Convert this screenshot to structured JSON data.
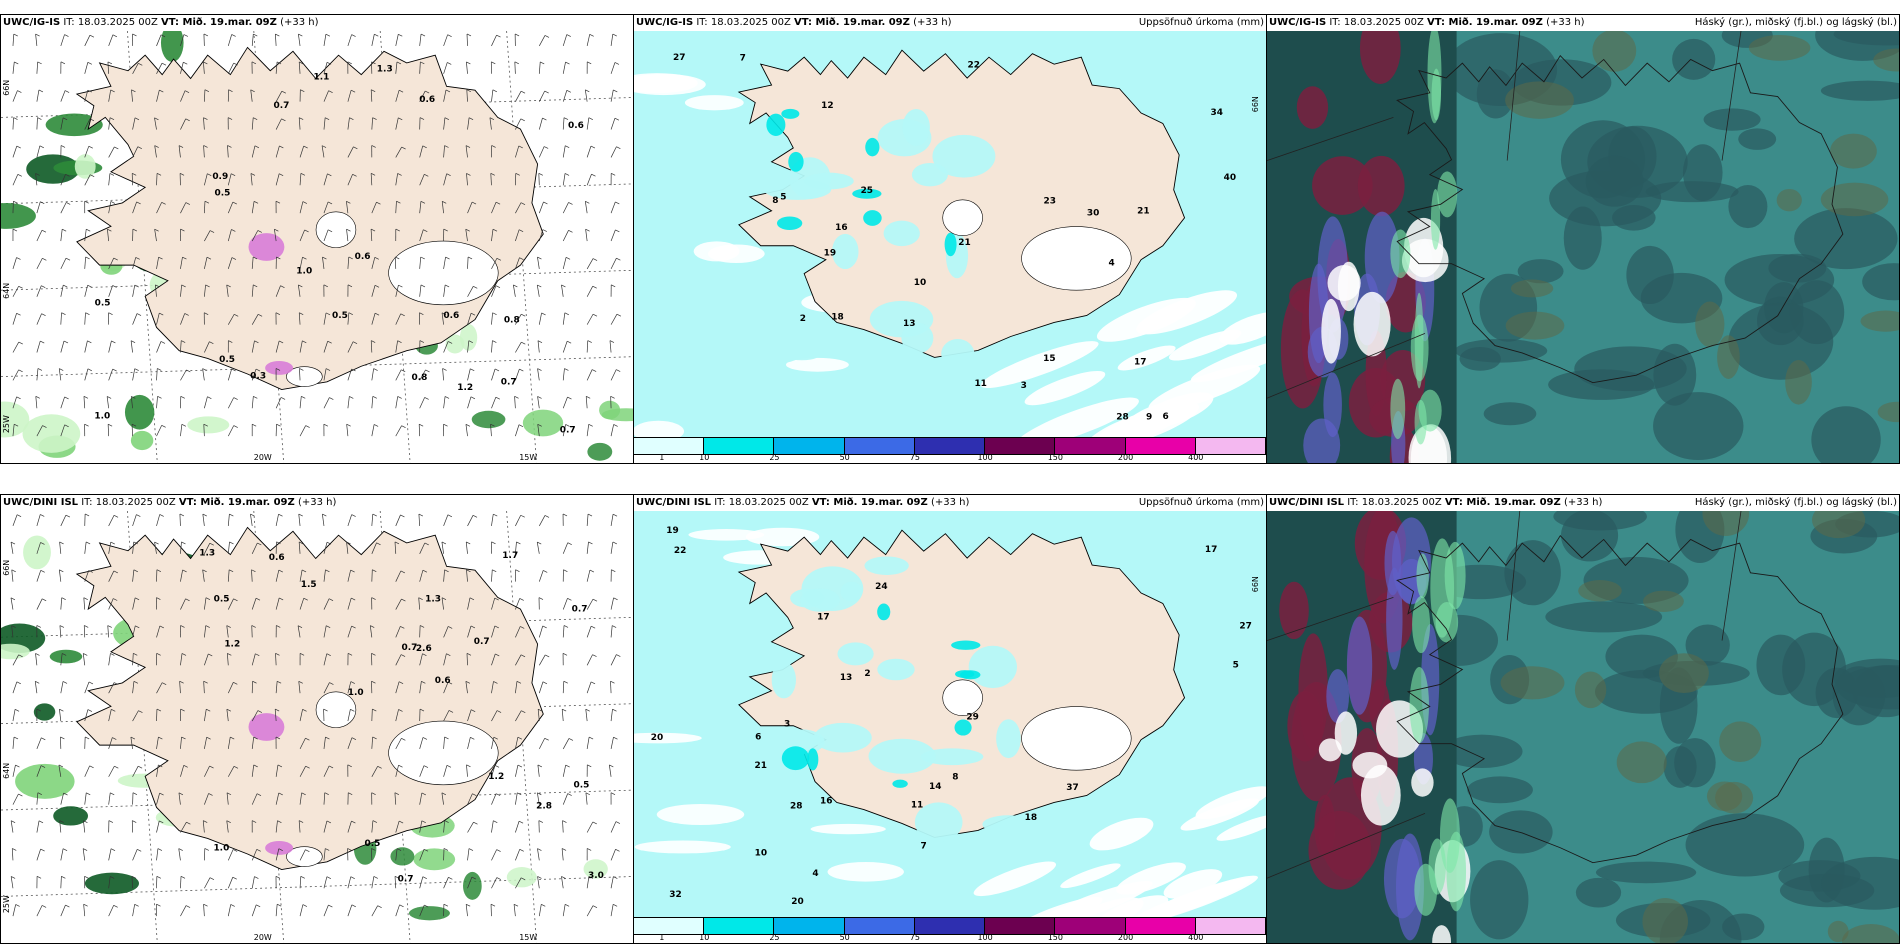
{
  "panels": [
    {
      "id": "p1",
      "title_model": "UWC/IG-IS",
      "title_rest": " IT: 18.03.2025 00Z ",
      "title_vt": "VT: Mið. 19.mar. 09Z",
      "title_lead": " (+33 h)",
      "right": ""
    },
    {
      "id": "p2",
      "title_model": "UWC/IG-IS",
      "title_rest": " IT: 18.03.2025 00Z ",
      "title_vt": "VT: Mið. 19.mar. 09Z",
      "title_lead": " (+33 h)",
      "right": "Uppsöfnuð úrkoma (mm)"
    },
    {
      "id": "p3",
      "title_model": "UWC/IG-IS",
      "title_rest": " IT: 18.03.2025 00Z ",
      "title_vt": "VT: Mið. 19.mar. 09Z",
      "title_lead": " (+33 h)",
      "right": "Háský (gr.), miðský (fj.bl.) og lágský (bl.)"
    },
    {
      "id": "p4",
      "title_model": "UWC/DINI ISL",
      "title_rest": " IT: 18.03.2025 00Z ",
      "title_vt": "VT: Mið. 19.mar. 09Z",
      "title_lead": " (+33 h)",
      "right": ""
    },
    {
      "id": "p5",
      "title_model": "UWC/DINI ISL",
      "title_rest": " IT: 18.03.2025 00Z ",
      "title_vt": "VT: Mið. 19.mar. 09Z",
      "title_lead": " (+33 h)",
      "right": "Uppsöfnuð úrkoma (mm)"
    },
    {
      "id": "p6",
      "title_model": "UWC/DINI ISL",
      "title_rest": " IT: 18.03.2025 00Z ",
      "title_vt": "VT: Mið. 19.mar. 09Z",
      "title_lead": " (+33 h)",
      "right": "Háský (gr.), miðský (fj.bl.) og lágský (bl.)"
    }
  ],
  "colorbar": {
    "labels": [
      "1",
      "10",
      "25",
      "50",
      "75",
      "100",
      "150",
      "200",
      "400"
    ],
    "colors": [
      "#e0ffff",
      "#00e8e8",
      "#00b4ec",
      "#3c6ae6",
      "#2e2fb0",
      "#6c0050",
      "#9e0078",
      "#e800a8",
      "#f4b8f0"
    ]
  },
  "map_ticks": {
    "lon": [
      "20W",
      "15W",
      "25W"
    ],
    "lat": [
      "66N",
      "64N"
    ]
  },
  "p1_values": [
    "1.0",
    "0.8",
    "0.6",
    "0.5",
    "0.7",
    "1.3",
    "0.7",
    "0.6",
    "1.2",
    "0.5",
    "0.7",
    "0.5",
    "0.3",
    "1.1",
    "0.8",
    "0.9",
    "0.6",
    "0.5",
    "1.0",
    "0.6"
  ],
  "p2_values": [
    "10",
    "8",
    "7",
    "4",
    "6",
    "12",
    "13",
    "19",
    "18",
    "30",
    "21",
    "22",
    "27",
    "28",
    "16",
    "15",
    "21",
    "40",
    "34",
    "25",
    "9",
    "5",
    "3",
    "2",
    "17",
    "23",
    "11"
  ],
  "p4_values": [
    "0.6",
    "0.7",
    "0.6",
    "1.3",
    "1.0",
    "0.5",
    "0.7",
    "2.6",
    "1.5",
    "1.3",
    "1.2",
    "1.0",
    "0.5",
    "2.8",
    "1.7",
    "3.0",
    "0.7",
    "0.5",
    "1.2",
    "0.7"
  ],
  "p5_values": [
    "22",
    "19",
    "20",
    "17",
    "27",
    "18",
    "24",
    "16",
    "32",
    "37",
    "28",
    "29",
    "20",
    "21",
    "14",
    "13",
    "11",
    "10",
    "17",
    "2",
    "5",
    "7",
    "4",
    "3",
    "6",
    "8"
  ],
  "colors": {
    "land": "#f5e6d8",
    "sea_precip": "#b4f8f8",
    "cloud_dark": "#2a5a60",
    "cloud_mid": "#3c8c8a",
    "maroon": "#7a2040"
  }
}
